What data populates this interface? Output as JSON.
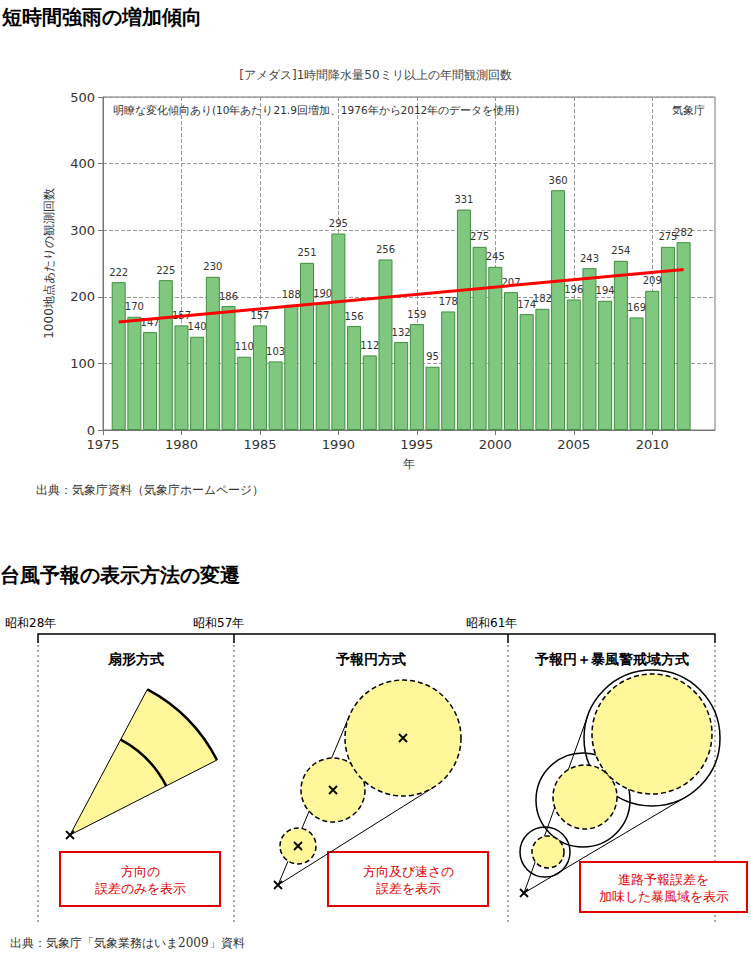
{
  "heading": "短時間強雨の増加傾向",
  "chart_data": {
    "type": "bar",
    "title": "[アメダス]1時間降水量50ミリ以上の年間観測回数",
    "annotations": [
      "明瞭な変化傾向あり(10年あたり21.9回増加、1976年から2012年のデータを使用)",
      "気象庁"
    ],
    "x_label": "年",
    "y_label": "1000地点あたりの観測回数",
    "x": [
      1976,
      1977,
      1978,
      1979,
      1980,
      1981,
      1982,
      1983,
      1984,
      1985,
      1986,
      1987,
      1988,
      1989,
      1990,
      1991,
      1992,
      1993,
      1994,
      1995,
      1996,
      1997,
      1998,
      1999,
      2000,
      2001,
      2002,
      2003,
      2004,
      2005,
      2006,
      2007,
      2008,
      2009,
      2010,
      2011,
      2012
    ],
    "series": [
      {
        "type": "bar",
        "color": "#80c880",
        "data_labels": true,
        "values": [
          222,
          170,
          147,
          225,
          157,
          140,
          230,
          186,
          110,
          157,
          103,
          188,
          251,
          190,
          295,
          156,
          112,
          256,
          132,
          159,
          95,
          178,
          331,
          275,
          245,
          207,
          174,
          182,
          360,
          196,
          243,
          194,
          254,
          169,
          209,
          275,
          282
        ]
      },
      {
        "type": "line",
        "color": "#ff0000",
        "x": [
          1976,
          2012
        ],
        "values": [
          162,
          241
        ]
      }
    ],
    "xlim": [
      1975,
      2014
    ],
    "xticks": [
      1975,
      1980,
      1985,
      1990,
      1995,
      2000,
      2005,
      2010
    ],
    "ylim": [
      0,
      500
    ],
    "yticks": [
      0,
      100,
      200,
      300,
      400,
      500
    ],
    "grid": true
  },
  "source": "出典：気象庁資料（気象庁ホームページ）",
  "diagram": {
    "title": "台風予報の表示方法の変遷",
    "timeline": [
      "昭和28年",
      "昭和57年",
      "昭和61年"
    ],
    "panels": [
      {
        "title": "扇形方式",
        "note": [
          "方向の",
          "誤差のみを表示"
        ]
      },
      {
        "title": "予報円方式",
        "note": [
          "方向及び速さの",
          "誤差を表示"
        ]
      },
      {
        "title": "予報円＋暴風警戒域方式",
        "note": [
          "進路予報誤差を",
          "加味した暴風域を表示"
        ]
      }
    ],
    "source": "出典：気象庁「気象業務はいま2009」資料"
  }
}
